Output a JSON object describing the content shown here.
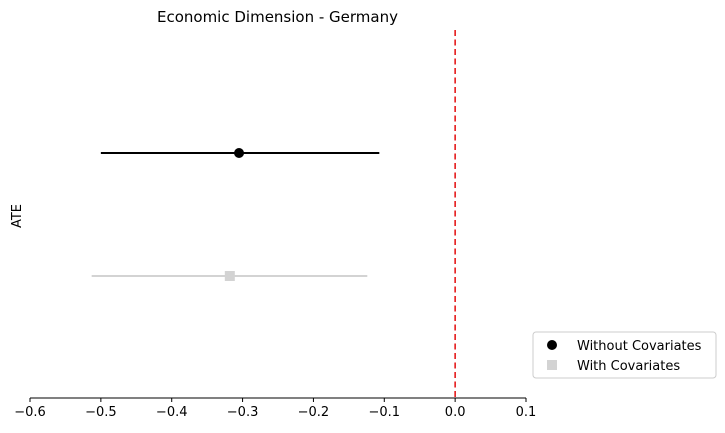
{
  "chart_data": {
    "type": "scatter",
    "title": "Economic Dimension - Germany",
    "xlabel": "",
    "ylabel": "ATE",
    "xlim": [
      -0.6,
      0.1
    ],
    "xticks": [
      "−0.6",
      "−0.5",
      "−0.4",
      "−0.3",
      "−0.2",
      "−0.1",
      "0.0",
      "0.1"
    ],
    "xtick_values": [
      -0.6,
      -0.5,
      -0.4,
      -0.3,
      -0.2,
      -0.1,
      0.0,
      0.1
    ],
    "reference_line": {
      "x": 0.0,
      "color": "#e41a1c",
      "style": "dashed"
    },
    "grid": false,
    "legend_position": "bottom-right outside",
    "series": [
      {
        "name": "Without Covariates",
        "marker": "circle",
        "color": "#000000",
        "estimate": -0.305,
        "ci": [
          -0.5,
          -0.107
        ],
        "row": 0
      },
      {
        "name": "With Covariates",
        "marker": "square",
        "color": "#d3d3d3",
        "estimate": -0.318,
        "ci": [
          -0.513,
          -0.124
        ],
        "row": 1
      }
    ]
  }
}
